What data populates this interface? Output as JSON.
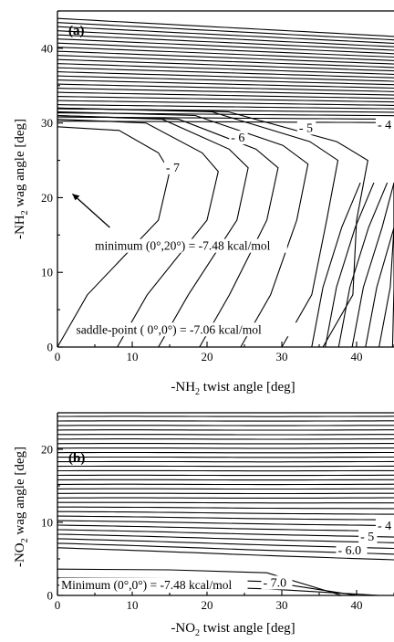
{
  "chart_data": [
    {
      "type": "contour",
      "panel_label": "(a)",
      "xlabel_main": "-NH",
      "xlabel_sub": "2",
      "xlabel_rest": " twist angle   [deg]",
      "ylabel_main": "-NH",
      "ylabel_sub": "2",
      "ylabel_rest": " wag angle   [deg]",
      "xlim": [
        0,
        45
      ],
      "ylim": [
        0,
        45
      ],
      "xticks": [
        0,
        10,
        20,
        30,
        40
      ],
      "yticks": [
        0,
        10,
        20,
        30,
        40
      ],
      "contour_labels": [
        {
          "text": "- 7",
          "x": 14.5,
          "y": 23.5
        },
        {
          "text": "- 6",
          "x": 23.2,
          "y": 27.5
        },
        {
          "text": "- 5",
          "x": 32.3,
          "y": 28.8
        },
        {
          "text": "- 4",
          "x": 42.8,
          "y": 29.2
        }
      ],
      "annotations": [
        {
          "text": "minimum (0°,20°) = -7.48 kcal/mol",
          "x": 5,
          "y": 13
        },
        {
          "text": "saddle-point ( 0°,0°) = -7.06 kcal/mol",
          "x": 2.5,
          "y": 1.8
        }
      ]
    },
    {
      "type": "contour",
      "panel_label": "(b)",
      "xlabel_main": "-NO",
      "xlabel_sub": "2",
      "xlabel_rest": " twist angle   [deg]",
      "ylabel_main": "-NO",
      "ylabel_sub": "2",
      "ylabel_rest": " wag angle   [deg]",
      "xlim": [
        0,
        45
      ],
      "ylim": [
        0,
        25
      ],
      "xticks": [
        0,
        10,
        20,
        30,
        40
      ],
      "yticks": [
        0,
        10,
        20
      ],
      "contour_labels": [
        {
          "text": "- 4",
          "x": 42.8,
          "y": 9.0
        },
        {
          "text": "- 5",
          "x": 40.5,
          "y": 7.5
        },
        {
          "text": "- 6.0",
          "x": 37.5,
          "y": 5.6
        },
        {
          "text": "- 7.0",
          "x": 27.5,
          "y": 1.2
        }
      ],
      "annotations": [
        {
          "text": "Minimum (0°,0°) = -7.48 kcal/mol",
          "x": 0.5,
          "y": 0.9
        }
      ]
    }
  ]
}
